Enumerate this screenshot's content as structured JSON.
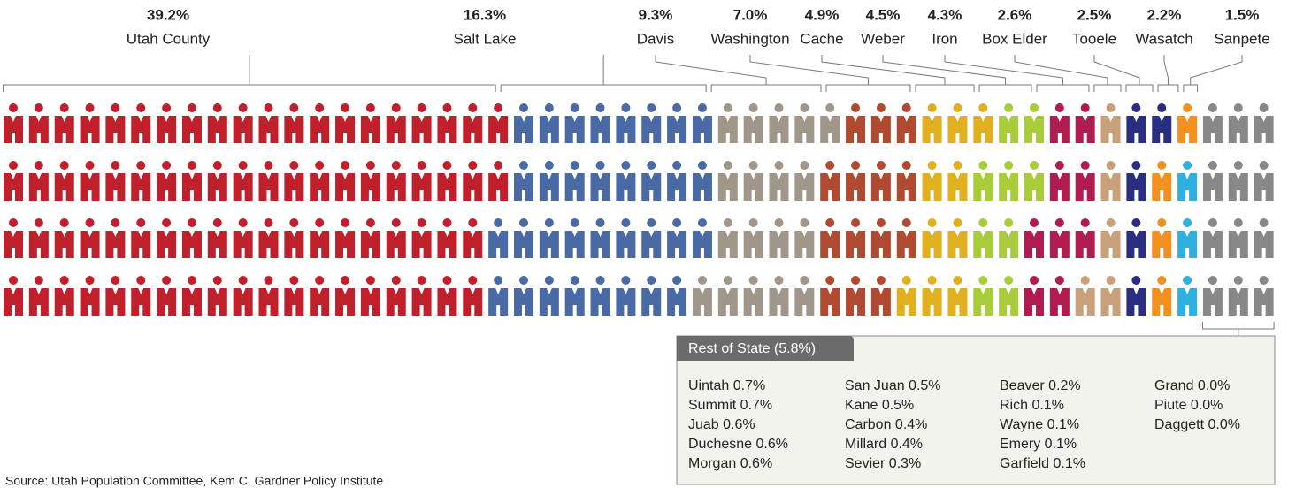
{
  "chart_data": {
    "type": "pictogram",
    "categories": [
      "Utah County",
      "Salt Lake",
      "Davis",
      "Washington",
      "Cache",
      "Weber",
      "Iron",
      "Box Elder",
      "Tooele",
      "Wasatch",
      "Sanpete"
    ],
    "values": [
      39.2,
      16.3,
      9.3,
      7.0,
      4.9,
      4.5,
      4.3,
      2.6,
      2.5,
      2.2,
      1.5
    ],
    "value_labels": [
      "39.2%",
      "16.3%",
      "9.3%",
      "7.0%",
      "4.9%",
      "4.5%",
      "4.3%",
      "2.6%",
      "2.5%",
      "2.2%",
      "1.5%"
    ],
    "colors": [
      "#c0202c",
      "#4a6aa5",
      "#a0968a",
      "#b04a30",
      "#e0b020",
      "#a8cc3a",
      "#b01c50",
      "#c8a07a",
      "#2a2e80",
      "#f29020",
      "#30b0e0"
    ],
    "rest": {
      "label": "Rest of State (5.8%)",
      "value": 5.8,
      "color": "#888888",
      "columns": [
        [
          "Uintah 0.7%",
          "Summit 0.7%",
          "Juab 0.6%",
          "Duchesne 0.6%",
          "Morgan 0.6%"
        ],
        [
          "San Juan 0.5%",
          "Kane 0.5%",
          "Carbon 0.4%",
          "Millard 0.4%",
          "Sevier 0.3%"
        ],
        [
          "Beaver 0.2%",
          "Rich 0.1%",
          "Wayne 0.1%",
          "Emery 0.1%",
          "Garfield 0.1%"
        ],
        [
          "Grand 0.0%",
          "Piute 0.0%",
          "Daggett 0.0%"
        ]
      ]
    },
    "source": "Source: Utah Population Committee, Kem C. Gardner Policy Institute"
  }
}
